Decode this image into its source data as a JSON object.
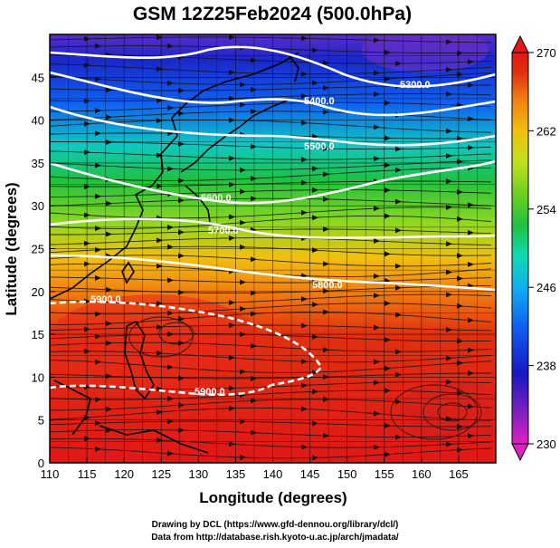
{
  "title": "GSM 12Z25Feb2024 (500.0hPa)",
  "xlabel": "Longitude (degrees)",
  "ylabel": "Latitude (degrees)",
  "credits": [
    "Drawing by DCL (https://www.gfd-dennou.org/library/dcl/)",
    "Data from http://database.rish.kyoto-u.ac.jp/arch/jmadata/"
  ],
  "chart_data": {
    "type": "heatmap",
    "xlim": [
      110,
      170
    ],
    "ylim": [
      0,
      50
    ],
    "x_ticks": [
      "110",
      "115",
      "120",
      "125",
      "130",
      "135",
      "140",
      "145",
      "150",
      "155",
      "160",
      "165"
    ],
    "y_ticks": [
      "0",
      "5",
      "10",
      "15",
      "20",
      "25",
      "30",
      "35",
      "40",
      "45"
    ],
    "colorbar": {
      "min": 230,
      "max": 270,
      "tick_labels": [
        "270",
        "262",
        "254",
        "246",
        "238",
        "230"
      ],
      "colors": [
        "#e020c0",
        "#8020c0",
        "#1818c0",
        "#1060f0",
        "#10b0f0",
        "#10d8b0",
        "#20c040",
        "#70d020",
        "#c0e020",
        "#f0c010",
        "#f08010",
        "#e03010",
        "#e01818"
      ]
    },
    "contours": [
      {
        "label": "5300.0"
      },
      {
        "label": "5400.0"
      },
      {
        "label": "5500.0"
      },
      {
        "label": "5600.0"
      },
      {
        "label": "5700.0"
      },
      {
        "label": "5800.0"
      },
      {
        "label": "5900.0"
      },
      {
        "label": "5900.0"
      }
    ],
    "grid": true,
    "streamlines": true
  }
}
